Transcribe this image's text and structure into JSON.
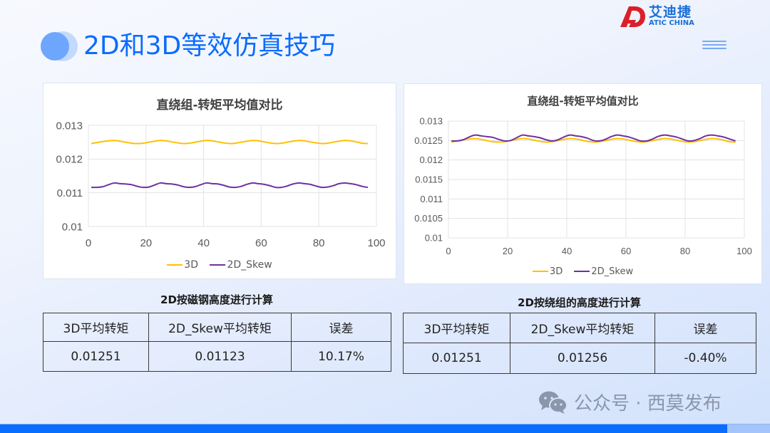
{
  "header": {
    "title": "2D和3D等效仿真技巧",
    "logo_cn": "艾迪捷",
    "logo_en": "ATIC CHINA",
    "menu_icon": "hamburger-menu-icon"
  },
  "colors": {
    "accent": "#0a6cff",
    "series_3d": "#ffc000",
    "series_2d_skew": "#7030a0",
    "bottom_bar": "#096dff"
  },
  "chart_data": [
    {
      "type": "line",
      "title": "直绕组-转矩平均值对比",
      "xlabel": "",
      "ylabel": "",
      "xlim": [
        0,
        100
      ],
      "ylim": [
        0.01,
        0.013
      ],
      "x_ticks": [
        "0",
        "20",
        "40",
        "60",
        "80",
        "100"
      ],
      "y_ticks": [
        "0.01",
        "0.011",
        "0.012",
        "0.013"
      ],
      "grid": true,
      "legend_position": "bottom",
      "x": [
        1,
        3,
        5,
        7,
        9,
        11,
        13,
        15,
        17,
        19,
        21,
        23,
        25,
        27,
        29,
        31,
        33,
        35,
        37,
        39,
        41,
        43,
        45,
        47,
        49,
        51,
        53,
        55,
        57,
        59,
        61,
        63,
        65,
        67,
        69,
        71,
        73,
        75,
        77,
        79,
        81,
        83,
        85,
        87,
        89,
        91,
        93,
        95,
        97
      ],
      "series": [
        {
          "name": "3D",
          "values": [
            0.01246,
            0.01249,
            0.01252,
            0.01254,
            0.01255,
            0.01253,
            0.0125,
            0.01247,
            0.01246,
            0.01247,
            0.0125,
            0.01253,
            0.01255,
            0.01254,
            0.01251,
            0.01248,
            0.01246,
            0.01247,
            0.0125,
            0.01253,
            0.01255,
            0.01254,
            0.01251,
            0.01248,
            0.01246,
            0.01247,
            0.0125,
            0.01253,
            0.01255,
            0.01254,
            0.01251,
            0.01248,
            0.01246,
            0.01247,
            0.0125,
            0.01253,
            0.01255,
            0.01254,
            0.01251,
            0.01248,
            0.01246,
            0.01247,
            0.0125,
            0.01253,
            0.01255,
            0.01254,
            0.01251,
            0.01247,
            0.01246
          ]
        },
        {
          "name": "2D_Skew",
          "values": [
            0.01116,
            0.01116,
            0.01118,
            0.01124,
            0.01129,
            0.01127,
            0.01126,
            0.01124,
            0.01119,
            0.01116,
            0.01117,
            0.01123,
            0.01129,
            0.01127,
            0.01126,
            0.01123,
            0.01118,
            0.01116,
            0.01118,
            0.01124,
            0.01129,
            0.01127,
            0.01126,
            0.01122,
            0.01117,
            0.01116,
            0.01119,
            0.01125,
            0.01129,
            0.01127,
            0.01125,
            0.01121,
            0.01116,
            0.01116,
            0.0112,
            0.01126,
            0.01129,
            0.01127,
            0.01125,
            0.0112,
            0.01116,
            0.01117,
            0.01121,
            0.01127,
            0.01129,
            0.01127,
            0.01124,
            0.01119,
            0.01116
          ]
        }
      ]
    },
    {
      "type": "line",
      "title": "直绕组-转矩平均值对比",
      "xlabel": "",
      "ylabel": "",
      "xlim": [
        0,
        100
      ],
      "ylim": [
        0.01,
        0.013
      ],
      "x_ticks": [
        "0",
        "20",
        "40",
        "60",
        "80",
        "100"
      ],
      "y_ticks": [
        "0.01",
        "0.0105",
        "0.011",
        "0.0115",
        "0.012",
        "0.0125",
        "0.013"
      ],
      "grid": true,
      "legend_position": "bottom",
      "x": [
        1,
        3,
        5,
        7,
        9,
        11,
        13,
        15,
        17,
        19,
        21,
        23,
        25,
        27,
        29,
        31,
        33,
        35,
        37,
        39,
        41,
        43,
        45,
        47,
        49,
        51,
        53,
        55,
        57,
        59,
        61,
        63,
        65,
        67,
        69,
        71,
        73,
        75,
        77,
        79,
        81,
        83,
        85,
        87,
        89,
        91,
        93,
        95,
        97
      ],
      "series": [
        {
          "name": "3D",
          "values": [
            0.01246,
            0.01249,
            0.01252,
            0.01254,
            0.01255,
            0.01253,
            0.0125,
            0.01247,
            0.01246,
            0.01247,
            0.0125,
            0.01253,
            0.01255,
            0.01254,
            0.01251,
            0.01248,
            0.01246,
            0.01247,
            0.0125,
            0.01253,
            0.01255,
            0.01254,
            0.01251,
            0.01248,
            0.01246,
            0.01247,
            0.0125,
            0.01253,
            0.01255,
            0.01254,
            0.01251,
            0.01248,
            0.01246,
            0.01247,
            0.0125,
            0.01253,
            0.01255,
            0.01254,
            0.01251,
            0.01248,
            0.01246,
            0.01247,
            0.0125,
            0.01253,
            0.01255,
            0.01254,
            0.01251,
            0.01247,
            0.01246
          ]
        },
        {
          "name": "2D_Skew",
          "values": [
            0.01249,
            0.01249,
            0.01252,
            0.01259,
            0.01264,
            0.01262,
            0.0126,
            0.01258,
            0.01253,
            0.01249,
            0.0125,
            0.01257,
            0.01264,
            0.01262,
            0.0126,
            0.01257,
            0.01252,
            0.01249,
            0.01252,
            0.01259,
            0.01264,
            0.01262,
            0.0126,
            0.01256,
            0.0125,
            0.01249,
            0.01253,
            0.0126,
            0.01264,
            0.01262,
            0.01259,
            0.01254,
            0.01249,
            0.01249,
            0.01254,
            0.01261,
            0.01264,
            0.01262,
            0.01259,
            0.01254,
            0.01249,
            0.0125,
            0.01255,
            0.01262,
            0.01264,
            0.01262,
            0.01259,
            0.01254,
            0.01249
          ]
        }
      ]
    }
  ],
  "tables": [
    {
      "caption": "2D按磁钢高度进行计算",
      "headers": [
        "3D平均转矩",
        "2D_Skew平均转矩",
        "误差"
      ],
      "row": [
        "0.01251",
        "0.01123",
        "10.17%"
      ]
    },
    {
      "caption": "2D按绕组的高度进行计算",
      "headers": [
        "3D平均转矩",
        "2D_Skew平均转矩",
        "误差"
      ],
      "row": [
        "0.01251",
        "0.01256",
        "-0.40%"
      ]
    }
  ],
  "watermark": {
    "icon": "wechat-icon",
    "text": "公众号 · 西莫发布"
  }
}
